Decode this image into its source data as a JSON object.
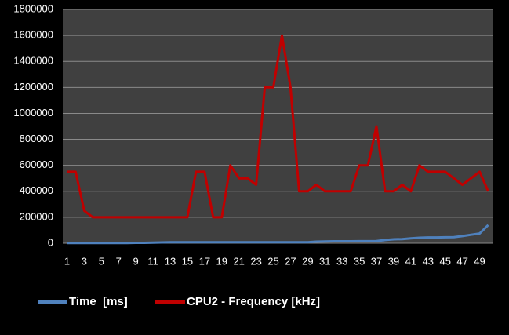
{
  "chart_data": {
    "type": "line",
    "categories": [
      1,
      null,
      3,
      null,
      5,
      null,
      7,
      null,
      9,
      null,
      11,
      null,
      13,
      null,
      15,
      null,
      17,
      null,
      19,
      null,
      21,
      null,
      23,
      null,
      25,
      null,
      27,
      null,
      29,
      null,
      31,
      null,
      33,
      null,
      35,
      null,
      37,
      null,
      39,
      null,
      41,
      null,
      43,
      null,
      45,
      null,
      47,
      null,
      49,
      null
    ],
    "series": [
      {
        "name": "Time  [ms]",
        "color": "#4f81bd",
        "values": [
          2000,
          2000,
          2000,
          2000,
          2000,
          2000,
          2000,
          2000,
          3000,
          3000,
          5000,
          6000,
          7000,
          7000,
          7000,
          7000,
          7000,
          7000,
          7000,
          7000,
          7000,
          7000,
          7000,
          8000,
          8000,
          8000,
          8000,
          8000,
          8000,
          12000,
          14000,
          15000,
          15000,
          15000,
          16000,
          16000,
          17000,
          25000,
          30000,
          32000,
          38000,
          42000,
          45000,
          45000,
          46000,
          47000,
          55000,
          65000,
          75000,
          140000
        ]
      },
      {
        "name": "CPU2 - Frequency [kHz]",
        "color": "#c00000",
        "values": [
          550000,
          550000,
          250000,
          200000,
          200000,
          200000,
          200000,
          200000,
          200000,
          200000,
          200000,
          200000,
          200000,
          200000,
          200000,
          550000,
          550000,
          200000,
          200000,
          600000,
          500000,
          500000,
          450000,
          1200000,
          1200000,
          1600000,
          1200000,
          400000,
          400000,
          450000,
          400000,
          400000,
          400000,
          400000,
          600000,
          600000,
          900000,
          400000,
          400000,
          450000,
          400000,
          600000,
          550000,
          550000,
          550000,
          500000,
          450000,
          500000,
          550000,
          400000
        ]
      }
    ],
    "ylim": [
      0,
      1800000
    ],
    "yticks": [
      0,
      200000,
      400000,
      600000,
      800000,
      1000000,
      1200000,
      1400000,
      1600000,
      1800000
    ],
    "grid": true,
    "legend": "bottom"
  }
}
